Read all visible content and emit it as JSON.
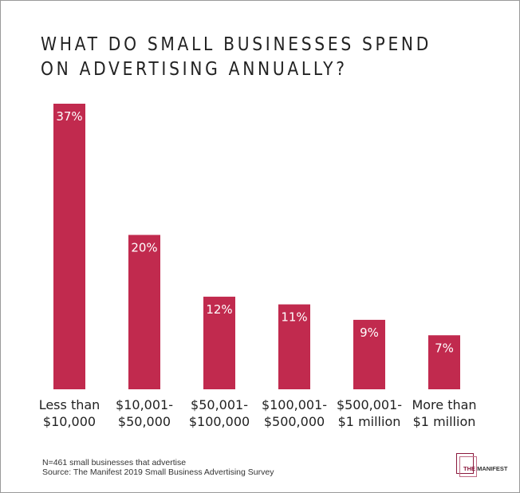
{
  "chart_data": {
    "type": "bar",
    "title": "WHAT DO SMALL BUSINESSES SPEND\nON ADVERTISING ANNUALLY?",
    "categories": [
      [
        "Less than",
        "$10,000"
      ],
      [
        "$10,001-",
        "$50,000"
      ],
      [
        "$50,001-",
        "$100,000"
      ],
      [
        "$100,001-",
        "$500,000"
      ],
      [
        "$500,001-",
        "$1 million"
      ],
      [
        "More than",
        "$1 million"
      ]
    ],
    "values": [
      37,
      20,
      12,
      11,
      9,
      7
    ],
    "data_labels": [
      "37%",
      "20%",
      "12%",
      "11%",
      "9%",
      "7%"
    ],
    "unit": "%",
    "ylim": [
      0,
      37
    ],
    "grid": false,
    "bar_color": "#c12a4e"
  },
  "footer": {
    "note": "N=461 small businesses that advertise",
    "source": "Source: The Manifest 2019 Small Business Advertising Survey"
  },
  "logo": {
    "text_the": "THE",
    "text_manifest": "MANIFEST",
    "colors": [
      "#8b1a3e",
      "#c06b85"
    ]
  }
}
